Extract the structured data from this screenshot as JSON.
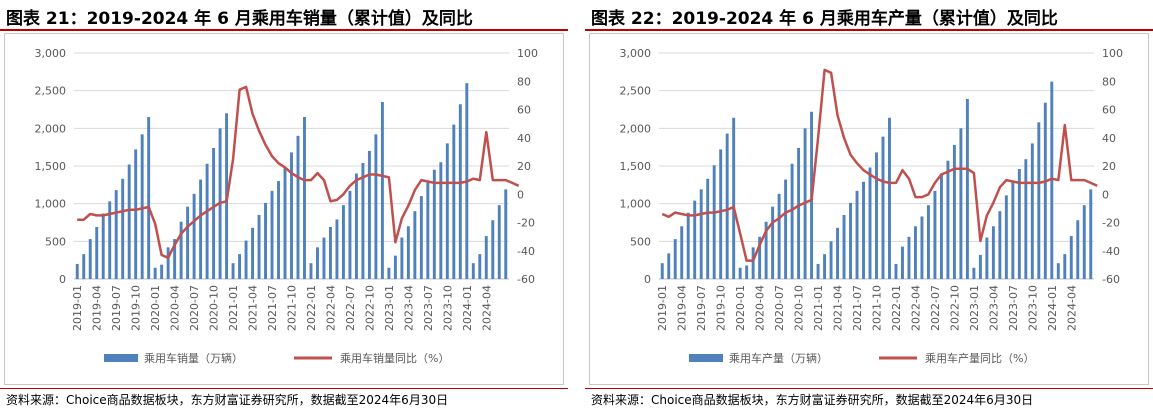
{
  "chart_data": [
    {
      "type": "bar+line",
      "title": "图表 21：2019-2024 年 6 月乘用车销量（累计值）及同比",
      "source": "资料来源：Choice商品数据板块，东方财富证券研究所，数据截至2024年6月30日",
      "x_ticks": [
        "2019-01",
        "2019-04",
        "2019-07",
        "2019-10",
        "2020-01",
        "2020-04",
        "2020-07",
        "2020-10",
        "2021-01",
        "2021-04",
        "2021-07",
        "2021-10",
        "2022-01",
        "2022-04",
        "2022-07",
        "2022-10",
        "2023-01",
        "2023-04",
        "2023-07",
        "2023-10",
        "2024-01",
        "2024-04"
      ],
      "y_left_ticks": [
        "3,000",
        "2,500",
        "2,000",
        "1,500",
        "1,000",
        "500",
        "0"
      ],
      "y_right_ticks": [
        "100",
        "80",
        "60",
        "40",
        "20",
        "0",
        "-20",
        "-40",
        "-60"
      ],
      "ylim_left": [
        0,
        3000
      ],
      "ylim_right": [
        -60,
        100
      ],
      "series": [
        {
          "name": "乘用车销量（万辆）",
          "type": "bar",
          "color": "#4f81bd",
          "values": [
            200,
            330,
            530,
            690,
            870,
            1030,
            1180,
            1330,
            1520,
            1720,
            1920,
            2150,
            150,
            190,
            420,
            530,
            760,
            960,
            1130,
            1320,
            1530,
            1740,
            2000,
            2200,
            210,
            330,
            510,
            680,
            850,
            1010,
            1170,
            1300,
            1480,
            1680,
            1900,
            2150,
            210,
            420,
            550,
            690,
            790,
            980,
            1170,
            1400,
            1540,
            1700,
            1920,
            2350,
            150,
            310,
            550,
            700,
            900,
            1100,
            1300,
            1450,
            1550,
            1800,
            2050,
            2320,
            2600,
            210,
            330,
            570,
            780,
            980,
            1190
          ]
        },
        {
          "name": "乘用车销量同比（%）",
          "type": "line",
          "color": "#c0504d",
          "values": [
            -18,
            -18,
            -14,
            -15,
            -15,
            -14,
            -13,
            -12,
            -11,
            -11,
            -10,
            -9,
            -21,
            -43,
            -45,
            -36,
            -28,
            -23,
            -19,
            -15,
            -12,
            -9,
            -6,
            -5,
            25,
            74,
            76,
            57,
            45,
            35,
            27,
            22,
            19,
            15,
            12,
            10,
            10,
            15,
            10,
            -5,
            -4,
            0,
            6,
            10,
            12,
            14,
            14,
            13,
            12,
            -34,
            -17,
            -8,
            3,
            10,
            9,
            8,
            8,
            8,
            8,
            8,
            9,
            11,
            10,
            44,
            10,
            10,
            10,
            8,
            6
          ]
        }
      ]
    },
    {
      "type": "bar+line",
      "title": "图表 22：2019-2024 年 6 月乘用车产量（累计值）及同比",
      "source": "资料来源：Choice商品数据板块，东方财富证券研究所，数据截至2024年6月30日",
      "x_ticks": [
        "2019-01",
        "2019-04",
        "2019-07",
        "2019-10",
        "2020-01",
        "2020-04",
        "2020-07",
        "2020-10",
        "2021-01",
        "2021-04",
        "2021-07",
        "2021-10",
        "2022-01",
        "2022-04",
        "2022-07",
        "2022-10",
        "2023-01",
        "2023-04",
        "2023-07",
        "2023-10",
        "2024-01",
        "2024-04"
      ],
      "y_left_ticks": [
        "3,000",
        "2,500",
        "2,000",
        "1,500",
        "1,000",
        "500",
        "0"
      ],
      "y_right_ticks": [
        "100",
        "80",
        "60",
        "40",
        "20",
        "0",
        "-20",
        "-40",
        "-60"
      ],
      "ylim_left": [
        0,
        3000
      ],
      "ylim_right": [
        -60,
        100
      ],
      "series": [
        {
          "name": "乘用车产量（万辆）",
          "type": "bar",
          "color": "#4f81bd",
          "values": [
            210,
            340,
            530,
            700,
            880,
            1040,
            1190,
            1330,
            1510,
            1720,
            1930,
            2140,
            150,
            180,
            420,
            560,
            760,
            960,
            1130,
            1320,
            1530,
            1740,
            2000,
            2220,
            200,
            330,
            500,
            680,
            850,
            1010,
            1170,
            1290,
            1480,
            1680,
            1890,
            2140,
            200,
            430,
            560,
            700,
            830,
            980,
            1170,
            1400,
            1570,
            1780,
            2000,
            2390,
            150,
            320,
            550,
            700,
            900,
            1110,
            1290,
            1460,
            1590,
            1800,
            2080,
            2340,
            2620,
            210,
            330,
            570,
            780,
            980,
            1190
          ]
        },
        {
          "name": "乘用车产量同比（%）",
          "type": "line",
          "color": "#c0504d",
          "values": [
            -14,
            -16,
            -13,
            -14,
            -15,
            -15,
            -14,
            -13,
            -13,
            -12,
            -11,
            -9,
            -28,
            -47,
            -47,
            -36,
            -26,
            -20,
            -17,
            -13,
            -11,
            -8,
            -6,
            -4,
            40,
            88,
            86,
            56,
            40,
            28,
            22,
            17,
            14,
            11,
            9,
            8,
            8,
            17,
            11,
            -2,
            -2,
            0,
            8,
            14,
            16,
            18,
            18,
            18,
            15,
            -33,
            -15,
            -6,
            5,
            10,
            9,
            8,
            8,
            8,
            8,
            9,
            11,
            10,
            49,
            10,
            10,
            10,
            8,
            6
          ]
        }
      ]
    }
  ]
}
